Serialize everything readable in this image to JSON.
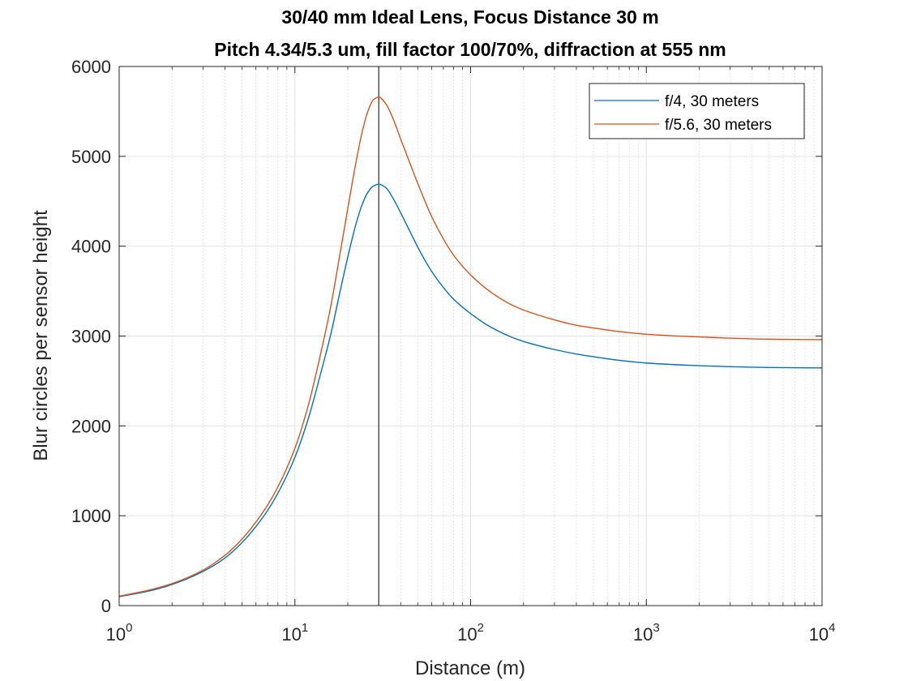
{
  "chart_data": {
    "type": "line",
    "title": [
      "30/40 mm Ideal Lens, Focus Distance 30 m",
      "Pitch 4.34/5.3 um, fill factor 100/70%, diffraction at 555 nm"
    ],
    "xlabel": "Distance (m)",
    "ylabel": "Blur circles per sensor height",
    "xscale": "log",
    "xlim": [
      1,
      10000
    ],
    "ylim": [
      0,
      6000
    ],
    "x_ticks": [
      {
        "base": "10",
        "exp": "0",
        "value": 1
      },
      {
        "base": "10",
        "exp": "1",
        "value": 10
      },
      {
        "base": "10",
        "exp": "2",
        "value": 100
      },
      {
        "base": "10",
        "exp": "3",
        "value": 1000
      },
      {
        "base": "10",
        "exp": "4",
        "value": 10000
      }
    ],
    "y_ticks": [
      "0",
      "1000",
      "2000",
      "3000",
      "4000",
      "5000",
      "6000"
    ],
    "grid": true,
    "focus_line_x": 30,
    "legend_position": "top-right",
    "series": [
      {
        "name": "f/4, 30 meters",
        "color": "#0072BD",
        "points": [
          [
            1,
            100
          ],
          [
            1.5,
            165
          ],
          [
            2,
            235
          ],
          [
            3,
            380
          ],
          [
            4,
            530
          ],
          [
            5,
            700
          ],
          [
            6,
            880
          ],
          [
            7,
            1060
          ],
          [
            8,
            1250
          ],
          [
            10,
            1650
          ],
          [
            12,
            2100
          ],
          [
            14,
            2580
          ],
          [
            16,
            3020
          ],
          [
            18,
            3480
          ],
          [
            20,
            3880
          ],
          [
            22,
            4210
          ],
          [
            24,
            4450
          ],
          [
            26,
            4600
          ],
          [
            28,
            4670
          ],
          [
            30,
            4690
          ],
          [
            33,
            4650
          ],
          [
            36,
            4540
          ],
          [
            40,
            4370
          ],
          [
            45,
            4170
          ],
          [
            50,
            3990
          ],
          [
            60,
            3720
          ],
          [
            70,
            3540
          ],
          [
            80,
            3410
          ],
          [
            100,
            3250
          ],
          [
            130,
            3100
          ],
          [
            170,
            2990
          ],
          [
            200,
            2940
          ],
          [
            300,
            2850
          ],
          [
            400,
            2800
          ],
          [
            500,
            2770
          ],
          [
            700,
            2730
          ],
          [
            1000,
            2700
          ],
          [
            2000,
            2670
          ],
          [
            5000,
            2650
          ],
          [
            10000,
            2645
          ]
        ]
      },
      {
        "name": "f/5.6, 30 meters",
        "color": "#D95319",
        "points": [
          [
            1,
            105
          ],
          [
            1.5,
            175
          ],
          [
            2,
            245
          ],
          [
            3,
            395
          ],
          [
            4,
            560
          ],
          [
            5,
            740
          ],
          [
            6,
            930
          ],
          [
            7,
            1120
          ],
          [
            8,
            1320
          ],
          [
            10,
            1750
          ],
          [
            12,
            2250
          ],
          [
            14,
            2800
          ],
          [
            16,
            3330
          ],
          [
            18,
            3900
          ],
          [
            20,
            4420
          ],
          [
            22,
            4880
          ],
          [
            24,
            5250
          ],
          [
            26,
            5500
          ],
          [
            28,
            5630
          ],
          [
            30,
            5660
          ],
          [
            33,
            5580
          ],
          [
            36,
            5430
          ],
          [
            40,
            5190
          ],
          [
            45,
            4930
          ],
          [
            50,
            4700
          ],
          [
            60,
            4330
          ],
          [
            70,
            4080
          ],
          [
            80,
            3900
          ],
          [
            100,
            3680
          ],
          [
            130,
            3490
          ],
          [
            170,
            3350
          ],
          [
            200,
            3290
          ],
          [
            300,
            3180
          ],
          [
            400,
            3120
          ],
          [
            500,
            3090
          ],
          [
            700,
            3050
          ],
          [
            1000,
            3020
          ],
          [
            2000,
            2990
          ],
          [
            5000,
            2965
          ],
          [
            10000,
            2960
          ]
        ]
      }
    ]
  }
}
